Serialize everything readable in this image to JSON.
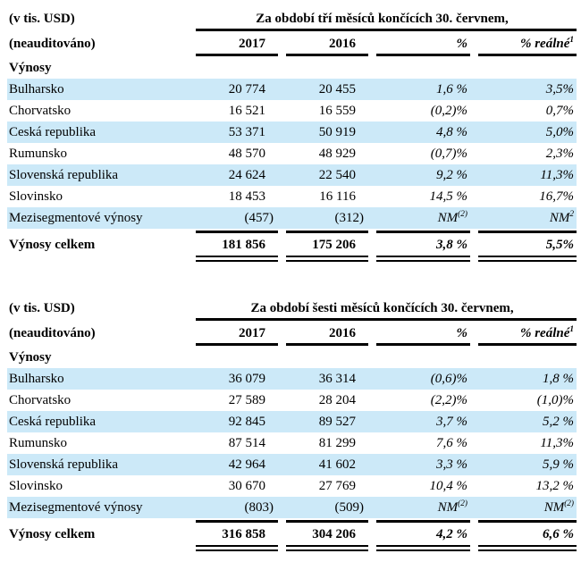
{
  "page": {
    "background": "#ffffff",
    "shaded_row_color": "#cce9f8",
    "text_color": "#000000"
  },
  "tables": [
    {
      "unit_label": "(v tis. USD)",
      "unaudited_label": "(neauditováno)",
      "period_title": "Za období tří měsíců končících 30. červnem,",
      "columns": [
        "2017",
        "2016",
        "%",
        "% reálné^1"
      ],
      "section_label": "Výnosy",
      "rows": [
        {
          "label": "Bulharsko",
          "y2017": "20 774",
          "y2016": "20 455",
          "pct": "1,6 %",
          "pct_real": "3,5%",
          "shaded": true
        },
        {
          "label": "Chorvatsko",
          "y2017": "16 521",
          "y2016": "16 559",
          "pct": "(0,2)%",
          "pct_real": "0,7%",
          "shaded": false
        },
        {
          "label": "Ceská republika",
          "y2017": "53 371",
          "y2016": "50 919",
          "pct": "4,8 %",
          "pct_real": "5,0%",
          "shaded": true
        },
        {
          "label": "Rumunsko",
          "y2017": "48 570",
          "y2016": "48 929",
          "pct": "(0,7)%",
          "pct_real": "2,3%",
          "shaded": false
        },
        {
          "label": "Slovenská republika",
          "y2017": "24 624",
          "y2016": "22 540",
          "pct": "9,2 %",
          "pct_real": "11,3%",
          "shaded": true
        },
        {
          "label": "Slovinsko",
          "y2017": "18 453",
          "y2016": "16 116",
          "pct": "14,5 %",
          "pct_real": "16,7%",
          "shaded": false
        },
        {
          "label": "Mezisegmentové výnosy",
          "y2017": "(457)",
          "y2016": "(312)",
          "pct": "NM^(2)",
          "pct_real": "NM^2",
          "shaded": true
        }
      ],
      "total": {
        "label": "Výnosy celkem",
        "y2017": "181 856",
        "y2016": "175 206",
        "pct": "3,8 %",
        "pct_real": "5,5%"
      }
    },
    {
      "unit_label": "(v tis. USD)",
      "unaudited_label": "(neauditováno)",
      "period_title": "Za období šesti měsíců končících 30. červnem,",
      "columns": [
        "2017",
        "2016",
        "%",
        "% reálné^1"
      ],
      "section_label": "Výnosy",
      "rows": [
        {
          "label": "Bulharsko",
          "y2017": "36 079",
          "y2016": "36 314",
          "pct": "(0,6)%",
          "pct_real": "1,8 %",
          "shaded": true
        },
        {
          "label": "Chorvatsko",
          "y2017": "27 589",
          "y2016": "28 204",
          "pct": "(2,2)%",
          "pct_real": "(1,0)%",
          "shaded": false
        },
        {
          "label": "Ceská republika",
          "y2017": "92 845",
          "y2016": "89 527",
          "pct": "3,7 %",
          "pct_real": "5,2 %",
          "shaded": true
        },
        {
          "label": "Rumunsko",
          "y2017": "87 514",
          "y2016": "81 299",
          "pct": "7,6 %",
          "pct_real": "11,3%",
          "shaded": false
        },
        {
          "label": "Slovenská republika",
          "y2017": "42 964",
          "y2016": "41 602",
          "pct": "3,3 %",
          "pct_real": "5,9 %",
          "shaded": true
        },
        {
          "label": "Slovinsko",
          "y2017": "30 670",
          "y2016": "27 769",
          "pct": "10,4 %",
          "pct_real": "13,2 %",
          "shaded": false
        },
        {
          "label": "Mezisegmentové výnosy",
          "y2017": "(803)",
          "y2016": "(509)",
          "pct": "NM^(2)",
          "pct_real": "NM^(2)",
          "shaded": true
        }
      ],
      "total": {
        "label": "Výnosy celkem",
        "y2017": "316 858",
        "y2016": "304 206",
        "pct": "4,2 %",
        "pct_real": "6,6 %"
      }
    }
  ]
}
